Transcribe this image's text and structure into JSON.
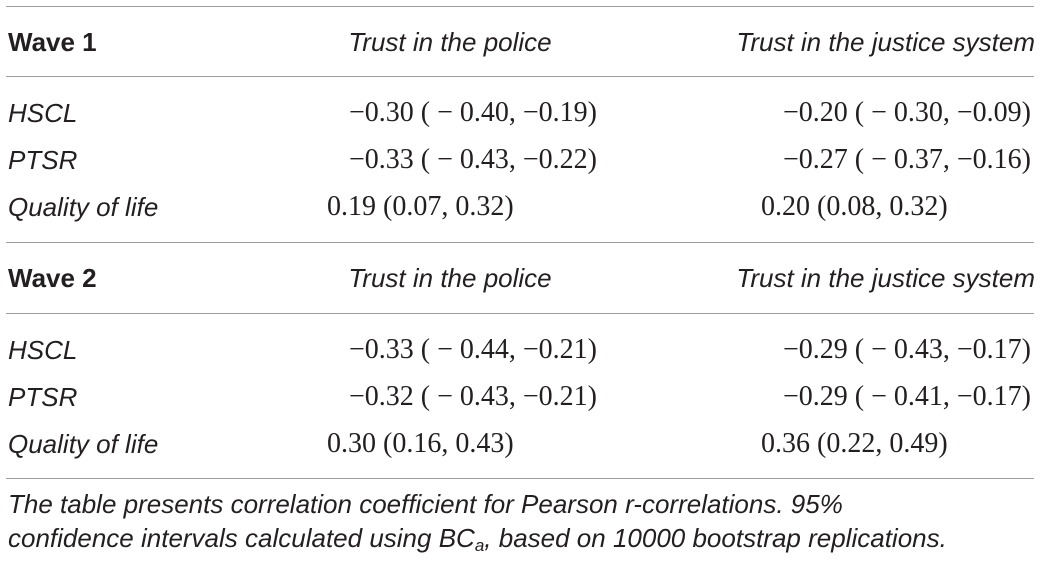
{
  "waves": [
    {
      "label": "Wave 1",
      "col1_header": "Trust in the police",
      "col2_header": "Trust in the justice system",
      "rows": [
        {
          "label": "HSCL",
          "police": "−0.30 ( − 0.40, −0.19)",
          "justice": "−0.20 ( − 0.30, −0.09)"
        },
        {
          "label": "PTSR",
          "police": "−0.33 ( − 0.43, −0.22)",
          "justice": "−0.27 ( − 0.37, −0.16)"
        },
        {
          "label": "Quality of life",
          "police": "0.19 (0.07, 0.32)",
          "justice": "0.20 (0.08, 0.32)"
        }
      ]
    },
    {
      "label": "Wave 2",
      "col1_header": "Trust in the police",
      "col2_header": "Trust in the justice system",
      "rows": [
        {
          "label": "HSCL",
          "police": "−0.33 ( − 0.44, −0.21)",
          "justice": "−0.29 ( − 0.43, −0.17)"
        },
        {
          "label": "PTSR",
          "police": "−0.32 ( − 0.43, −0.21)",
          "justice": "−0.29 ( − 0.41, −0.17)"
        },
        {
          "label": "Quality of life",
          "police": "0.30 (0.16, 0.43)",
          "justice": "0.36 (0.22, 0.49)"
        }
      ]
    }
  ],
  "footnote": {
    "line1": "The table presents correlation coefficient for Pearson r-correlations. 95%",
    "line2_pre": "confidence intervals calculated using BC",
    "line2_sub": "a",
    "line2_post": ", based on 10000 bootstrap replications."
  }
}
